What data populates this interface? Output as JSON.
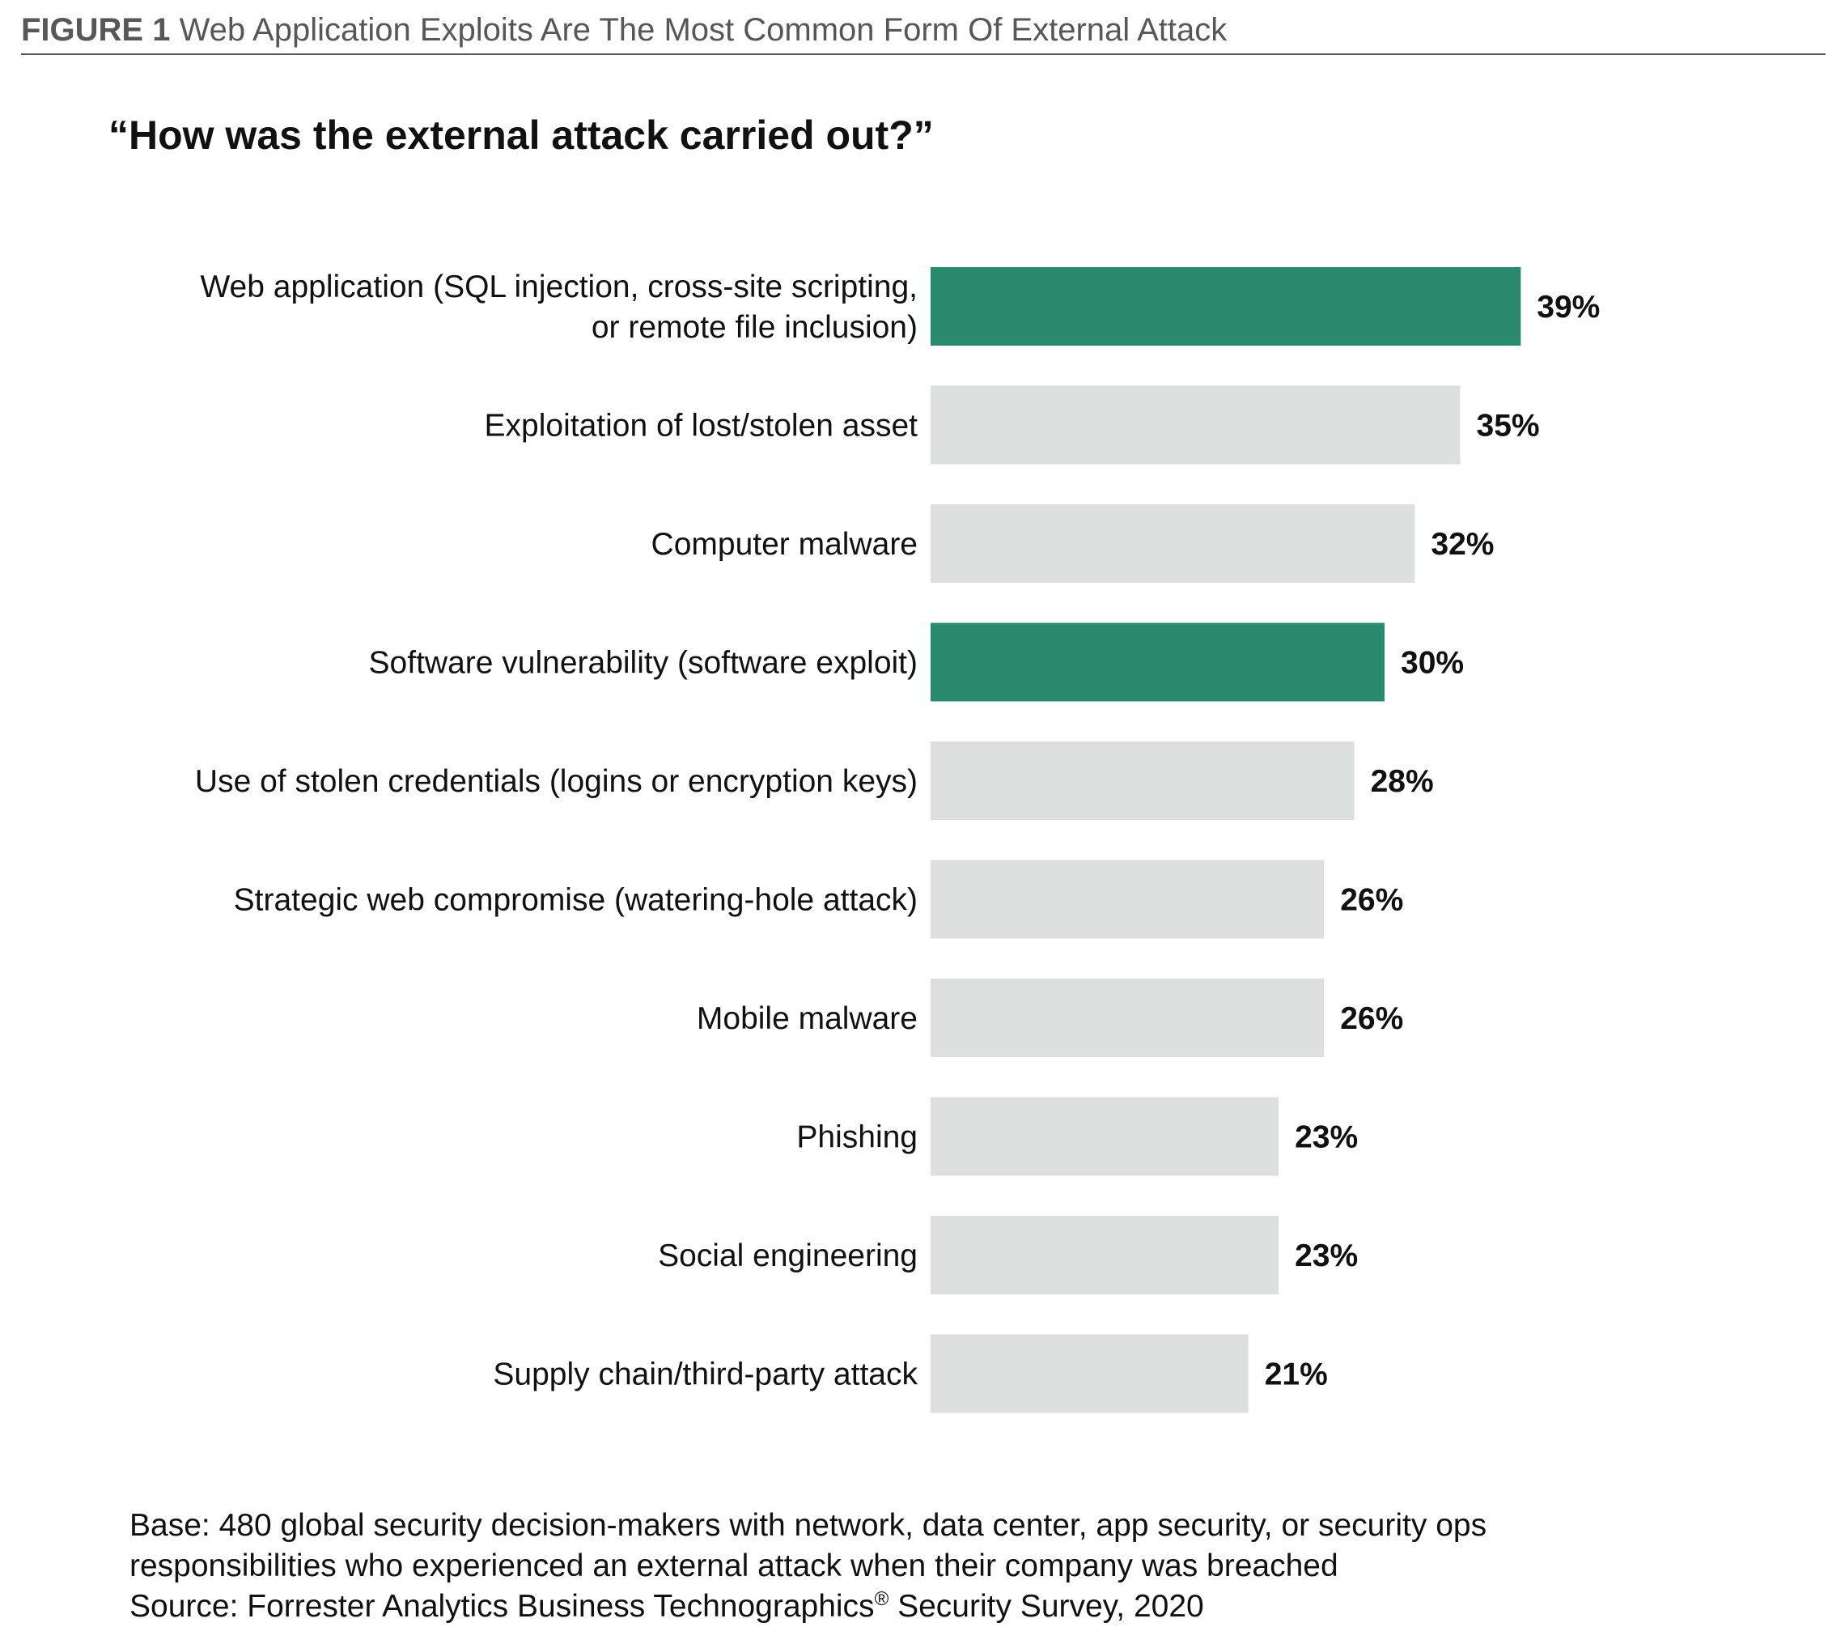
{
  "figure": {
    "number": "FIGURE 1",
    "title": "Web Application Exploits Are The Most Common Form Of External Attack"
  },
  "question": "“How was the external attack carried out?”",
  "colors": {
    "highlight": "#2a8a6e",
    "default": "#dcdfde"
  },
  "chart_data": {
    "type": "bar",
    "orientation": "horizontal",
    "categories": [
      "Web application (SQL injection, cross-site scripting, or remote file inclusion)",
      "Exploitation of lost/stolen asset",
      "Computer malware",
      "Software vulnerability (software exploit)",
      "Use of stolen credentials (logins or encryption keys)",
      "Strategic web compromise (watering-hole attack)",
      "Mobile malware",
      "Phishing",
      "Social engineering",
      "Supply chain/third-party attack"
    ],
    "category_lines": [
      [
        "Web application (SQL injection, cross-site scripting,",
        "or remote file inclusion)"
      ],
      [
        "Exploitation of lost/stolen asset"
      ],
      [
        "Computer malware"
      ],
      [
        "Software vulnerability (software exploit)"
      ],
      [
        "Use of stolen credentials (logins or encryption keys)"
      ],
      [
        "Strategic web compromise (watering-hole attack)"
      ],
      [
        "Mobile malware"
      ],
      [
        "Phishing"
      ],
      [
        "Social engineering"
      ],
      [
        "Supply chain/third-party attack"
      ]
    ],
    "values": [
      39,
      35,
      32,
      30,
      28,
      26,
      26,
      23,
      23,
      21
    ],
    "value_labels": [
      "39%",
      "35%",
      "32%",
      "30%",
      "28%",
      "26%",
      "26%",
      "23%",
      "23%",
      "21%"
    ],
    "highlighted": [
      true,
      false,
      false,
      true,
      false,
      false,
      false,
      false,
      false,
      false
    ],
    "unit": "%",
    "grid": false
  },
  "footnote": {
    "line1": "Base: 480 global security decision-makers with network, data center, app security, or security ops",
    "line2": "responsibilities who experienced an external attack when their company was breached",
    "line3_prefix": "Source: Forrester Analytics Business Technographics",
    "line3_reg": "®",
    "line3_suffix": " Security Survey, 2020"
  }
}
